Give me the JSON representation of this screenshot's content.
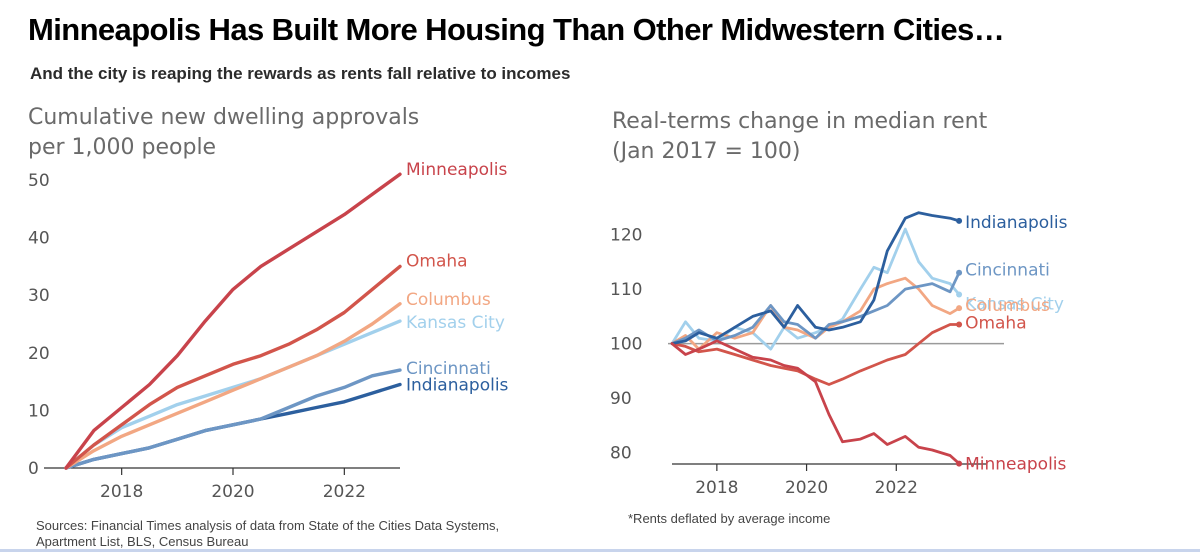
{
  "headline": "Minneapolis Has Built More Housing Than Other Midwestern Cities…",
  "subhead": "And the city is reaping the rewards as rents fall relative to incomes",
  "left_source": "Sources: Financial Times analysis of data from State of the Cities Data Systems, Apartment List, BLS, Census Bureau",
  "right_note": "*Rents deflated by average income",
  "colors": {
    "Minneapolis": "#c8434b",
    "Omaha": "#d2554b",
    "Columbus": "#f2a783",
    "Kansas City": "#a2d0ec",
    "Cincinnati": "#6d96c4",
    "Indianapolis": "#2c5f9e",
    "axis": "#333333",
    "baseline": "#9a9a9a"
  },
  "chart_data": [
    {
      "type": "line",
      "title_lines": [
        "Cumulative new dwelling approvals",
        "per 1,000 people"
      ],
      "xlabel": "",
      "ylabel": "",
      "xlim": [
        2017.0,
        2023.0
      ],
      "ylim": [
        0,
        50
      ],
      "xticks": [
        2018,
        2020,
        2022
      ],
      "yticks": [
        0,
        10,
        20,
        30,
        40,
        50
      ],
      "grid": false,
      "series": [
        {
          "name": "Minneapolis",
          "x": [
            2017.0,
            2017.5,
            2018.0,
            2018.5,
            2019.0,
            2019.5,
            2020.0,
            2020.5,
            2021.0,
            2021.5,
            2022.0,
            2022.5,
            2023.0
          ],
          "y": [
            0,
            6.5,
            10.5,
            14.5,
            19.5,
            25.5,
            31,
            35,
            38,
            41,
            44,
            47.5,
            51
          ]
        },
        {
          "name": "Omaha",
          "x": [
            2017.0,
            2017.5,
            2018.0,
            2018.5,
            2019.0,
            2019.5,
            2020.0,
            2020.5,
            2021.0,
            2021.5,
            2022.0,
            2022.5,
            2023.0
          ],
          "y": [
            0,
            4,
            7.5,
            11,
            14,
            16,
            18,
            19.5,
            21.5,
            24,
            27,
            31,
            35
          ]
        },
        {
          "name": "Columbus",
          "x": [
            2017.0,
            2017.5,
            2018.0,
            2018.5,
            2019.0,
            2019.5,
            2020.0,
            2020.5,
            2021.0,
            2021.5,
            2022.0,
            2022.5,
            2023.0
          ],
          "y": [
            0,
            3,
            5.5,
            7.5,
            9.5,
            11.5,
            13.5,
            15.5,
            17.5,
            19.5,
            22,
            25,
            28.5
          ]
        },
        {
          "name": "Kansas City",
          "x": [
            2017.0,
            2017.5,
            2018.0,
            2018.5,
            2019.0,
            2019.5,
            2020.0,
            2020.5,
            2021.0,
            2021.5,
            2022.0,
            2022.5,
            2023.0
          ],
          "y": [
            0,
            4,
            7,
            9,
            11,
            12.5,
            14,
            15.5,
            17.5,
            19.5,
            21.5,
            23.5,
            25.5
          ]
        },
        {
          "name": "Cincinnati",
          "x": [
            2017.0,
            2017.5,
            2018.0,
            2018.5,
            2019.0,
            2019.5,
            2020.0,
            2020.5,
            2021.0,
            2021.5,
            2022.0,
            2022.5,
            2023.0
          ],
          "y": [
            0,
            1.5,
            2.5,
            3.5,
            5,
            6.5,
            7.5,
            8.5,
            10.5,
            12.5,
            14,
            16,
            17
          ]
        },
        {
          "name": "Indianapolis",
          "x": [
            2017.0,
            2017.5,
            2018.0,
            2018.5,
            2019.0,
            2019.5,
            2020.0,
            2020.5,
            2021.0,
            2021.5,
            2022.0,
            2022.5,
            2023.0
          ],
          "y": [
            0,
            1.5,
            2.5,
            3.5,
            5,
            6.5,
            7.5,
            8.5,
            9.5,
            10.5,
            11.5,
            13,
            14.5
          ]
        }
      ]
    },
    {
      "type": "line",
      "title_lines": [
        "Real-terms change in median rent",
        "(Jan 2017 = 100)"
      ],
      "xlabel": "",
      "ylabel": "",
      "xlim": [
        2017.0,
        2024.0
      ],
      "ylim": [
        75,
        130
      ],
      "xticks": [
        2018,
        2020,
        2022
      ],
      "yticks": [
        80,
        90,
        100,
        110,
        120
      ],
      "baseline": 100,
      "grid": false,
      "series": [
        {
          "name": "Indianapolis",
          "x": [
            2017.0,
            2017.3,
            2017.6,
            2018.0,
            2018.4,
            2018.8,
            2019.2,
            2019.5,
            2019.8,
            2020.2,
            2020.5,
            2020.8,
            2021.2,
            2021.5,
            2021.8,
            2022.2,
            2022.5,
            2022.8,
            2023.2,
            2023.4
          ],
          "y": [
            100,
            100.5,
            102,
            101,
            103,
            105,
            106,
            103,
            107,
            103,
            102.5,
            103,
            104,
            108,
            117,
            123,
            124,
            123.5,
            123,
            122.5
          ]
        },
        {
          "name": "Cincinnati",
          "x": [
            2017.0,
            2017.3,
            2017.6,
            2018.0,
            2018.4,
            2018.8,
            2019.2,
            2019.5,
            2019.8,
            2020.2,
            2020.5,
            2020.8,
            2021.2,
            2021.5,
            2021.8,
            2022.2,
            2022.5,
            2022.8,
            2023.2,
            2023.4
          ],
          "y": [
            100,
            101,
            102.5,
            100.5,
            101.5,
            103,
            107,
            104,
            103.5,
            101,
            103.5,
            104,
            105,
            106,
            107,
            110,
            110.5,
            111,
            109.5,
            113
          ]
        },
        {
          "name": "Kansas City",
          "x": [
            2017.0,
            2017.3,
            2017.6,
            2018.0,
            2018.4,
            2018.8,
            2019.2,
            2019.5,
            2019.8,
            2020.2,
            2020.5,
            2020.8,
            2021.2,
            2021.5,
            2021.8,
            2022.2,
            2022.5,
            2022.8,
            2023.2,
            2023.4
          ],
          "y": [
            100,
            104,
            101,
            100.5,
            103,
            102,
            99,
            103,
            101,
            102,
            103,
            104.5,
            110,
            114,
            113,
            121,
            115,
            112,
            111,
            109
          ]
        },
        {
          "name": "Columbus",
          "x": [
            2017.0,
            2017.3,
            2017.6,
            2018.0,
            2018.4,
            2018.8,
            2019.2,
            2019.5,
            2019.8,
            2020.2,
            2020.5,
            2020.8,
            2021.2,
            2021.5,
            2021.8,
            2022.2,
            2022.5,
            2022.8,
            2023.2,
            2023.4
          ],
          "y": [
            100,
            101.5,
            99,
            102,
            101,
            102,
            107,
            103,
            102.5,
            101,
            103,
            104,
            106,
            110,
            111,
            112,
            110,
            107,
            105.5,
            106.5
          ]
        },
        {
          "name": "Omaha",
          "x": [
            2017.0,
            2017.3,
            2017.6,
            2018.0,
            2018.4,
            2018.8,
            2019.2,
            2019.5,
            2019.8,
            2020.2,
            2020.5,
            2020.8,
            2021.2,
            2021.5,
            2021.8,
            2022.2,
            2022.5,
            2022.8,
            2023.2,
            2023.4
          ],
          "y": [
            100,
            99.5,
            98.5,
            99,
            98,
            97,
            96,
            95.5,
            95,
            93.5,
            92.5,
            93.5,
            95,
            96,
            97,
            98,
            100,
            102,
            103.5,
            103.5
          ]
        },
        {
          "name": "Minneapolis",
          "x": [
            2017.0,
            2017.3,
            2017.6,
            2018.0,
            2018.4,
            2018.8,
            2019.2,
            2019.5,
            2019.8,
            2020.2,
            2020.5,
            2020.8,
            2021.2,
            2021.5,
            2021.8,
            2022.2,
            2022.5,
            2022.8,
            2023.2,
            2023.4
          ],
          "y": [
            100,
            98,
            99,
            100.5,
            99,
            97.5,
            97,
            96,
            95.5,
            93,
            87,
            82,
            82.5,
            83.5,
            81.5,
            83,
            81,
            80.5,
            79.5,
            78
          ]
        }
      ]
    }
  ]
}
